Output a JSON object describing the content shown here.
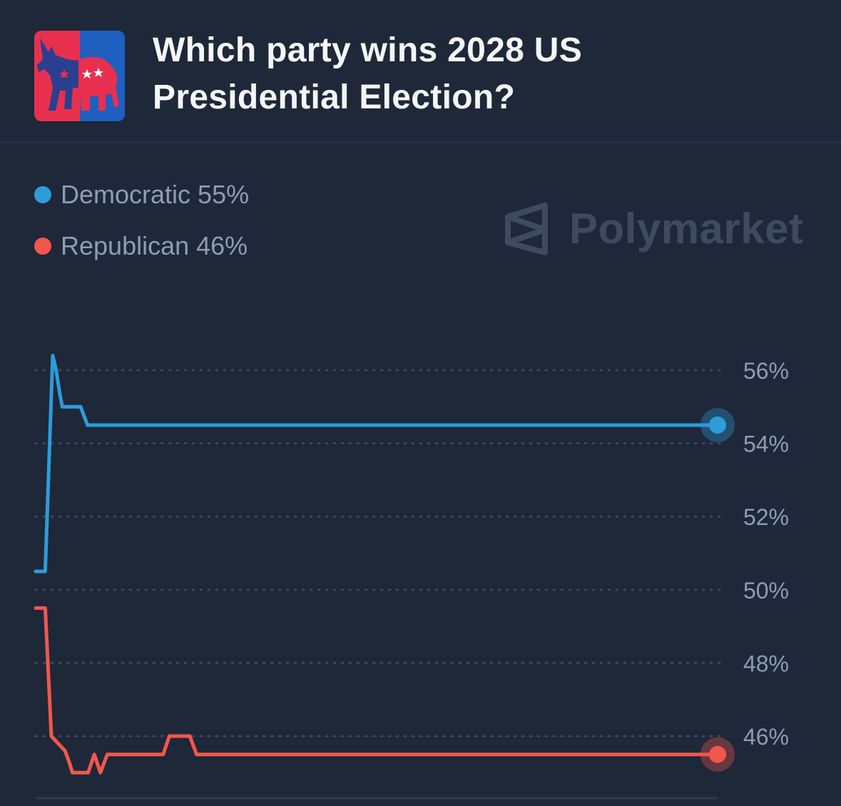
{
  "market": {
    "title": "Which party wins 2028 US Presidential Election?",
    "icon": "donkey-elephant-icon"
  },
  "brand": {
    "name": "Polymarket",
    "icon": "polymarket-logo-icon"
  },
  "legend": [
    {
      "name": "Democratic",
      "value": "55%",
      "color": "#2d9cdb"
    },
    {
      "name": "Republican",
      "value": "46%",
      "color": "#f1574d"
    }
  ],
  "chart_data": {
    "type": "line",
    "ylim": [
      45,
      56.5
    ],
    "yticks": [
      "56%",
      "54%",
      "52%",
      "50%",
      "48%",
      "46%"
    ],
    "ytick_values": [
      56,
      54,
      52,
      50,
      48,
      46
    ],
    "grid": true,
    "legend_position": "top-left",
    "x_range": [
      0,
      100
    ],
    "series": [
      {
        "name": "Democratic",
        "color": "#2d9cdb",
        "x": [
          0,
          1.4,
          2.5,
          3.0,
          3.5,
          3.9,
          5.0,
          6.6,
          7.0,
          7.6,
          100
        ],
        "y": [
          50.5,
          50.5,
          56.4,
          56.0,
          55.4,
          55.0,
          55.0,
          55.0,
          54.8,
          54.5,
          54.5
        ]
      },
      {
        "name": "Republican",
        "color": "#f1574d",
        "x": [
          0,
          1.4,
          2.3,
          3.3,
          4.3,
          4.9,
          5.4,
          7.7,
          8.6,
          9.5,
          10.5,
          11.0,
          18.7,
          19.6,
          22.6,
          23.6,
          100
        ],
        "y": [
          49.5,
          49.5,
          46.0,
          45.8,
          45.6,
          45.3,
          45.0,
          45.0,
          45.5,
          45.0,
          45.5,
          45.5,
          45.5,
          46.0,
          46.0,
          45.5,
          45.5
        ]
      }
    ]
  }
}
